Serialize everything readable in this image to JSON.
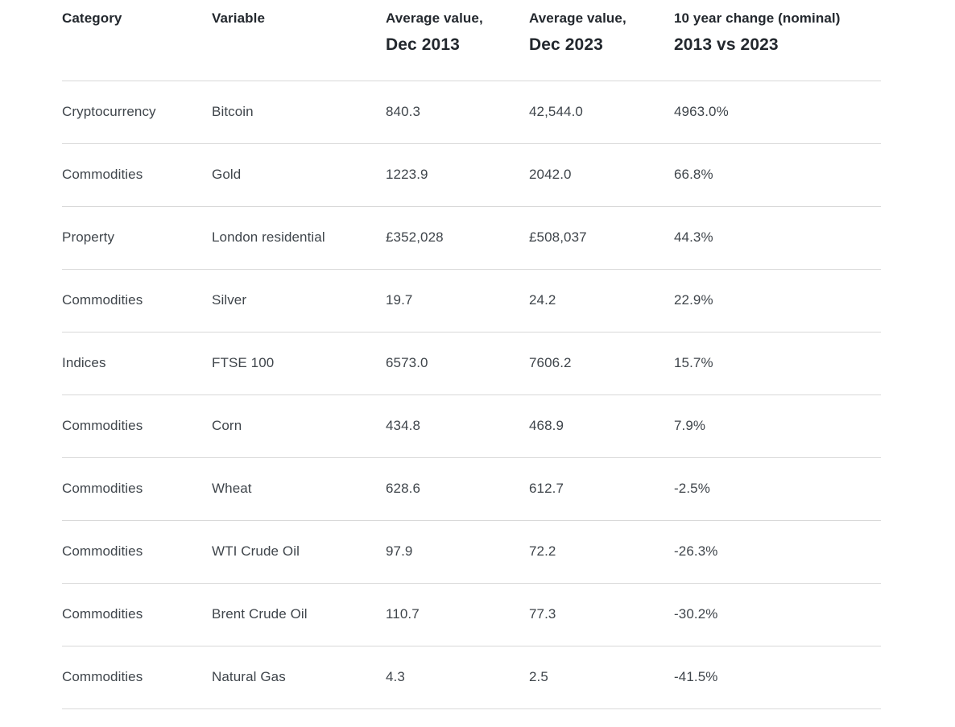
{
  "colors": {
    "background": "#ffffff",
    "header_text": "#23282e",
    "body_text": "#3f454b",
    "divider": "#d9d9d9"
  },
  "table": {
    "headers": [
      {
        "line1": "Category",
        "line2": ""
      },
      {
        "line1": "Variable",
        "line2": ""
      },
      {
        "line1": "Average value,",
        "line2": "Dec 2013"
      },
      {
        "line1": "Average value,",
        "line2": "Dec 2023"
      },
      {
        "line1": "10 year change (nominal)",
        "line2": "2013 vs 2023"
      }
    ],
    "rows": [
      [
        "Cryptocurrency",
        "Bitcoin",
        "840.3",
        "42,544.0",
        "4963.0%"
      ],
      [
        "Commodities",
        "Gold",
        "1223.9",
        "2042.0",
        "66.8%"
      ],
      [
        "Property",
        "London residential",
        "£352,028",
        "£508,037",
        "44.3%"
      ],
      [
        "Commodities",
        "Silver",
        "19.7",
        "24.2",
        "22.9%"
      ],
      [
        "Indices",
        "FTSE 100",
        "6573.0",
        "7606.2",
        "15.7%"
      ],
      [
        "Commodities",
        "Corn",
        "434.8",
        "468.9",
        "7.9%"
      ],
      [
        "Commodities",
        "Wheat",
        "628.6",
        "612.7",
        "-2.5%"
      ],
      [
        "Commodities",
        "WTI Crude Oil",
        "97.9",
        "72.2",
        "-26.3%"
      ],
      [
        "Commodities",
        "Brent Crude Oil",
        "110.7",
        "77.3",
        "-30.2%"
      ],
      [
        "Commodities",
        "Natural Gas",
        "4.3",
        "2.5",
        "-41.5%"
      ]
    ]
  },
  "chart_data": {
    "type": "table",
    "columns": [
      "Category",
      "Variable",
      "Average value, Dec 2013",
      "Average value, Dec 2023",
      "10 year change (nominal) 2013 vs 2023"
    ],
    "rows": [
      [
        "Cryptocurrency",
        "Bitcoin",
        "840.3",
        "42,544.0",
        "4963.0%"
      ],
      [
        "Commodities",
        "Gold",
        "1223.9",
        "2042.0",
        "66.8%"
      ],
      [
        "Property",
        "London residential",
        "£352,028",
        "£508,037",
        "44.3%"
      ],
      [
        "Commodities",
        "Silver",
        "19.7",
        "24.2",
        "22.9%"
      ],
      [
        "Indices",
        "FTSE 100",
        "6573.0",
        "7606.2",
        "15.7%"
      ],
      [
        "Commodities",
        "Corn",
        "434.8",
        "468.9",
        "7.9%"
      ],
      [
        "Commodities",
        "Wheat",
        "628.6",
        "612.7",
        "-2.5%"
      ],
      [
        "Commodities",
        "WTI Crude Oil",
        "97.9",
        "72.2",
        "-26.3%"
      ],
      [
        "Commodities",
        "Brent Crude Oil",
        "110.7",
        "77.3",
        "-30.2%"
      ],
      [
        "Commodities",
        "Natural Gas",
        "4.3",
        "2.5",
        "-41.5%"
      ]
    ]
  }
}
